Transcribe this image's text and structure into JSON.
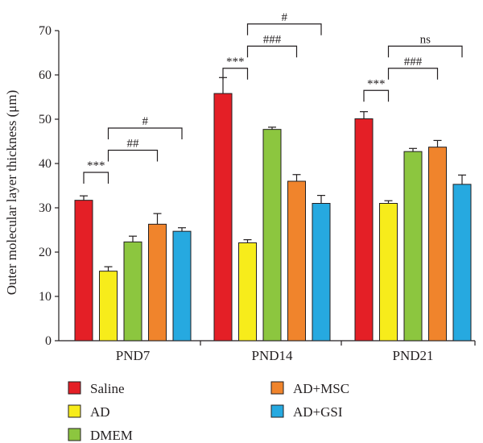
{
  "chart_data": {
    "type": "bar",
    "title": "",
    "xlabel": "",
    "ylabel": "Outer molecular layer thickness (μm)",
    "ylim": [
      0,
      70
    ],
    "yticks": [
      0,
      10,
      20,
      30,
      40,
      50,
      60,
      70
    ],
    "grid": false,
    "legend_placement": "bottom",
    "categories": [
      "PND7",
      "PND14",
      "PND21"
    ],
    "series": [
      {
        "name": "Saline",
        "color": "#e41f26",
        "values": [
          31.7,
          55.8,
          50.1
        ],
        "errors": [
          1.0,
          3.6,
          1.6
        ]
      },
      {
        "name": "AD",
        "color": "#f7ec1b",
        "values": [
          15.7,
          22.1,
          31.0
        ],
        "errors": [
          1.0,
          0.7,
          0.6
        ]
      },
      {
        "name": "DMEM",
        "color": "#8cc63f",
        "values": [
          22.3,
          47.7,
          42.7
        ],
        "errors": [
          1.3,
          0.5,
          0.7
        ]
      },
      {
        "name": "AD+MSC",
        "color": "#f0842c",
        "values": [
          26.3,
          36.0,
          43.7
        ],
        "errors": [
          2.4,
          1.5,
          1.5
        ]
      },
      {
        "name": "AD+GSI",
        "color": "#26a9e0",
        "values": [
          24.7,
          31.0,
          35.3
        ],
        "errors": [
          0.8,
          1.8,
          2.1
        ]
      }
    ],
    "annotations": [
      {
        "category": 0,
        "from": 0,
        "to": 1,
        "y": 38.0,
        "label": "***"
      },
      {
        "category": 0,
        "from": 1,
        "to": 3,
        "y": 43.0,
        "label": "##"
      },
      {
        "category": 0,
        "from": 1,
        "to": 4,
        "y": 48.0,
        "label": "#"
      },
      {
        "category": 1,
        "from": 0,
        "to": 1,
        "y": 61.5,
        "label": "***"
      },
      {
        "category": 1,
        "from": 1,
        "to": 3,
        "y": 66.5,
        "label": "###"
      },
      {
        "category": 1,
        "from": 1,
        "to": 4,
        "y": 71.5,
        "label": "#"
      },
      {
        "category": 2,
        "from": 0,
        "to": 1,
        "y": 56.5,
        "label": "***"
      },
      {
        "category": 2,
        "from": 1,
        "to": 3,
        "y": 61.5,
        "label": "###"
      },
      {
        "category": 2,
        "from": 1,
        "to": 4,
        "y": 66.5,
        "label": "ns"
      }
    ]
  }
}
